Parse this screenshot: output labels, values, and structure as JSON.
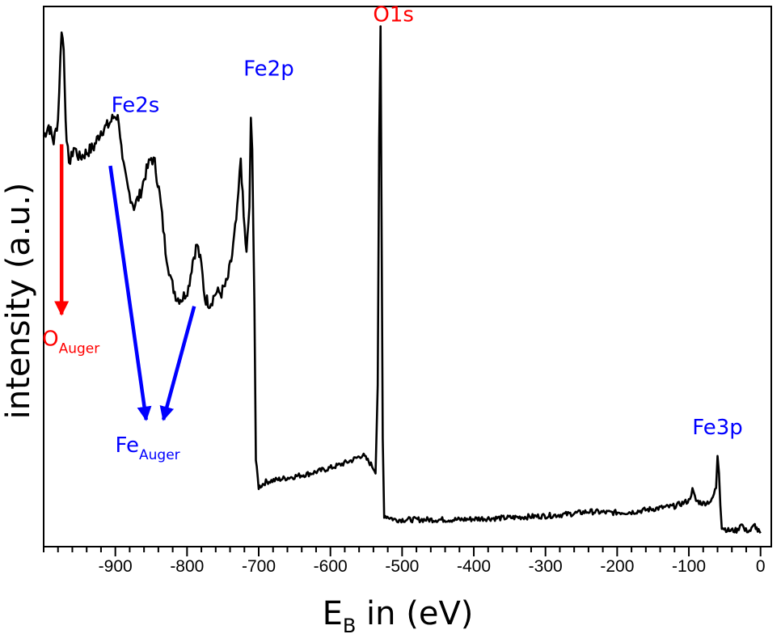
{
  "chart_data": {
    "type": "line",
    "xlabel": {
      "main": "E",
      "sub": "B",
      "rest": " in (eV)"
    },
    "ylabel": "intensity (a.u.)",
    "xlim": [
      -1000,
      15
    ],
    "ylim": [
      0,
      10
    ],
    "x_reversed": false,
    "x_ticks": [
      -900,
      -800,
      -700,
      -600,
      -500,
      -400,
      -300,
      -200,
      -100,
      0
    ],
    "x_minor_step": 20,
    "grid": false,
    "legend": "none",
    "line_color": "#000000",
    "series": [
      {
        "values": [
          [
            -1000,
            7.6
          ],
          [
            -993,
            7.8
          ],
          [
            -986,
            7.5
          ],
          [
            -980,
            7.9
          ],
          [
            -975,
            9.6
          ],
          [
            -972,
            9.2
          ],
          [
            -968,
            7.4
          ],
          [
            -963,
            7.1
          ],
          [
            -958,
            7.4
          ],
          [
            -950,
            7.2
          ],
          [
            -940,
            7.3
          ],
          [
            -930,
            7.4
          ],
          [
            -920,
            7.7
          ],
          [
            -910,
            7.8
          ],
          [
            -900,
            8.0
          ],
          [
            -895,
            7.9
          ],
          [
            -890,
            7.1
          ],
          [
            -882,
            6.6
          ],
          [
            -874,
            6.3
          ],
          [
            -866,
            6.5
          ],
          [
            -858,
            6.9
          ],
          [
            -850,
            7.2
          ],
          [
            -845,
            7.1
          ],
          [
            -838,
            6.5
          ],
          [
            -830,
            5.5
          ],
          [
            -822,
            4.9
          ],
          [
            -814,
            4.6
          ],
          [
            -806,
            4.6
          ],
          [
            -798,
            4.8
          ],
          [
            -792,
            5.3
          ],
          [
            -786,
            5.6
          ],
          [
            -780,
            5.2
          ],
          [
            -775,
            4.6
          ],
          [
            -768,
            4.5
          ],
          [
            -760,
            4.7
          ],
          [
            -752,
            4.7
          ],
          [
            -744,
            4.9
          ],
          [
            -737,
            5.4
          ],
          [
            -730,
            6.2
          ],
          [
            -725,
            7.2
          ],
          [
            -721,
            6.1
          ],
          [
            -717,
            5.4
          ],
          [
            -713,
            6.3
          ],
          [
            -711,
            7.85
          ],
          [
            -709,
            7.3
          ],
          [
            -706,
            4.5
          ],
          [
            -704,
            1.6
          ],
          [
            -700,
            1.1
          ],
          [
            -690,
            1.2
          ],
          [
            -670,
            1.25
          ],
          [
            -650,
            1.3
          ],
          [
            -630,
            1.35
          ],
          [
            -610,
            1.42
          ],
          [
            -590,
            1.5
          ],
          [
            -570,
            1.6
          ],
          [
            -555,
            1.7
          ],
          [
            -545,
            1.55
          ],
          [
            -537,
            1.4
          ],
          [
            -534,
            3.0
          ],
          [
            -532,
            7.5
          ],
          [
            -530,
            9.6
          ],
          [
            -529,
            7.0
          ],
          [
            -527,
            2.0
          ],
          [
            -525,
            0.58
          ],
          [
            -510,
            0.5
          ],
          [
            -480,
            0.5
          ],
          [
            -450,
            0.5
          ],
          [
            -420,
            0.5
          ],
          [
            -390,
            0.52
          ],
          [
            -360,
            0.53
          ],
          [
            -330,
            0.55
          ],
          [
            -300,
            0.57
          ],
          [
            -270,
            0.6
          ],
          [
            -240,
            0.65
          ],
          [
            -210,
            0.63
          ],
          [
            -180,
            0.64
          ],
          [
            -150,
            0.7
          ],
          [
            -120,
            0.75
          ],
          [
            -100,
            0.85
          ],
          [
            -95,
            1.05
          ],
          [
            -90,
            0.85
          ],
          [
            -80,
            0.8
          ],
          [
            -68,
            0.85
          ],
          [
            -62,
            1.1
          ],
          [
            -60,
            1.7
          ],
          [
            -58,
            1.4
          ],
          [
            -56,
            0.8
          ],
          [
            -54,
            0.36
          ],
          [
            -45,
            0.3
          ],
          [
            -32,
            0.3
          ],
          [
            -27,
            0.45
          ],
          [
            -22,
            0.3
          ],
          [
            -14,
            0.3
          ],
          [
            -8,
            0.4
          ],
          [
            -4,
            0.3
          ],
          [
            0,
            0.25
          ]
        ]
      }
    ],
    "annotations": {
      "o1s": {
        "text": "O1s",
        "x": -512,
        "y": 9.72,
        "color": "#ff0000"
      },
      "fe2p": {
        "text": "Fe2p",
        "x": -686,
        "y": 8.72,
        "color": "#0000ff"
      },
      "fe2s": {
        "text": "Fe2s",
        "x": -872,
        "y": 8.05,
        "color": "#0000ff"
      },
      "fe3p": {
        "text": "Fe3p",
        "x": -60,
        "y": 2.08,
        "color": "#0000ff"
      },
      "o_auger": {
        "text": "O",
        "sub": "Auger",
        "x": -962,
        "y": 3.72,
        "color": "#ff0000"
      },
      "fe_auger": {
        "text": "Fe",
        "sub": "Auger",
        "x": -855,
        "y": 1.75,
        "color": "#0000ff"
      }
    },
    "arrows": [
      {
        "name": "o-auger-arrow",
        "color": "#ff0000",
        "from": [
          -975,
          7.45
        ],
        "to": [
          -975,
          4.3
        ]
      },
      {
        "name": "fe-auger-arrow-left",
        "color": "#0000ff",
        "from": [
          -907,
          7.05
        ],
        "to": [
          -857,
          2.35
        ]
      },
      {
        "name": "fe-auger-arrow-right",
        "color": "#0000ff",
        "from": [
          -790,
          4.45
        ],
        "to": [
          -833,
          2.35
        ]
      }
    ]
  }
}
